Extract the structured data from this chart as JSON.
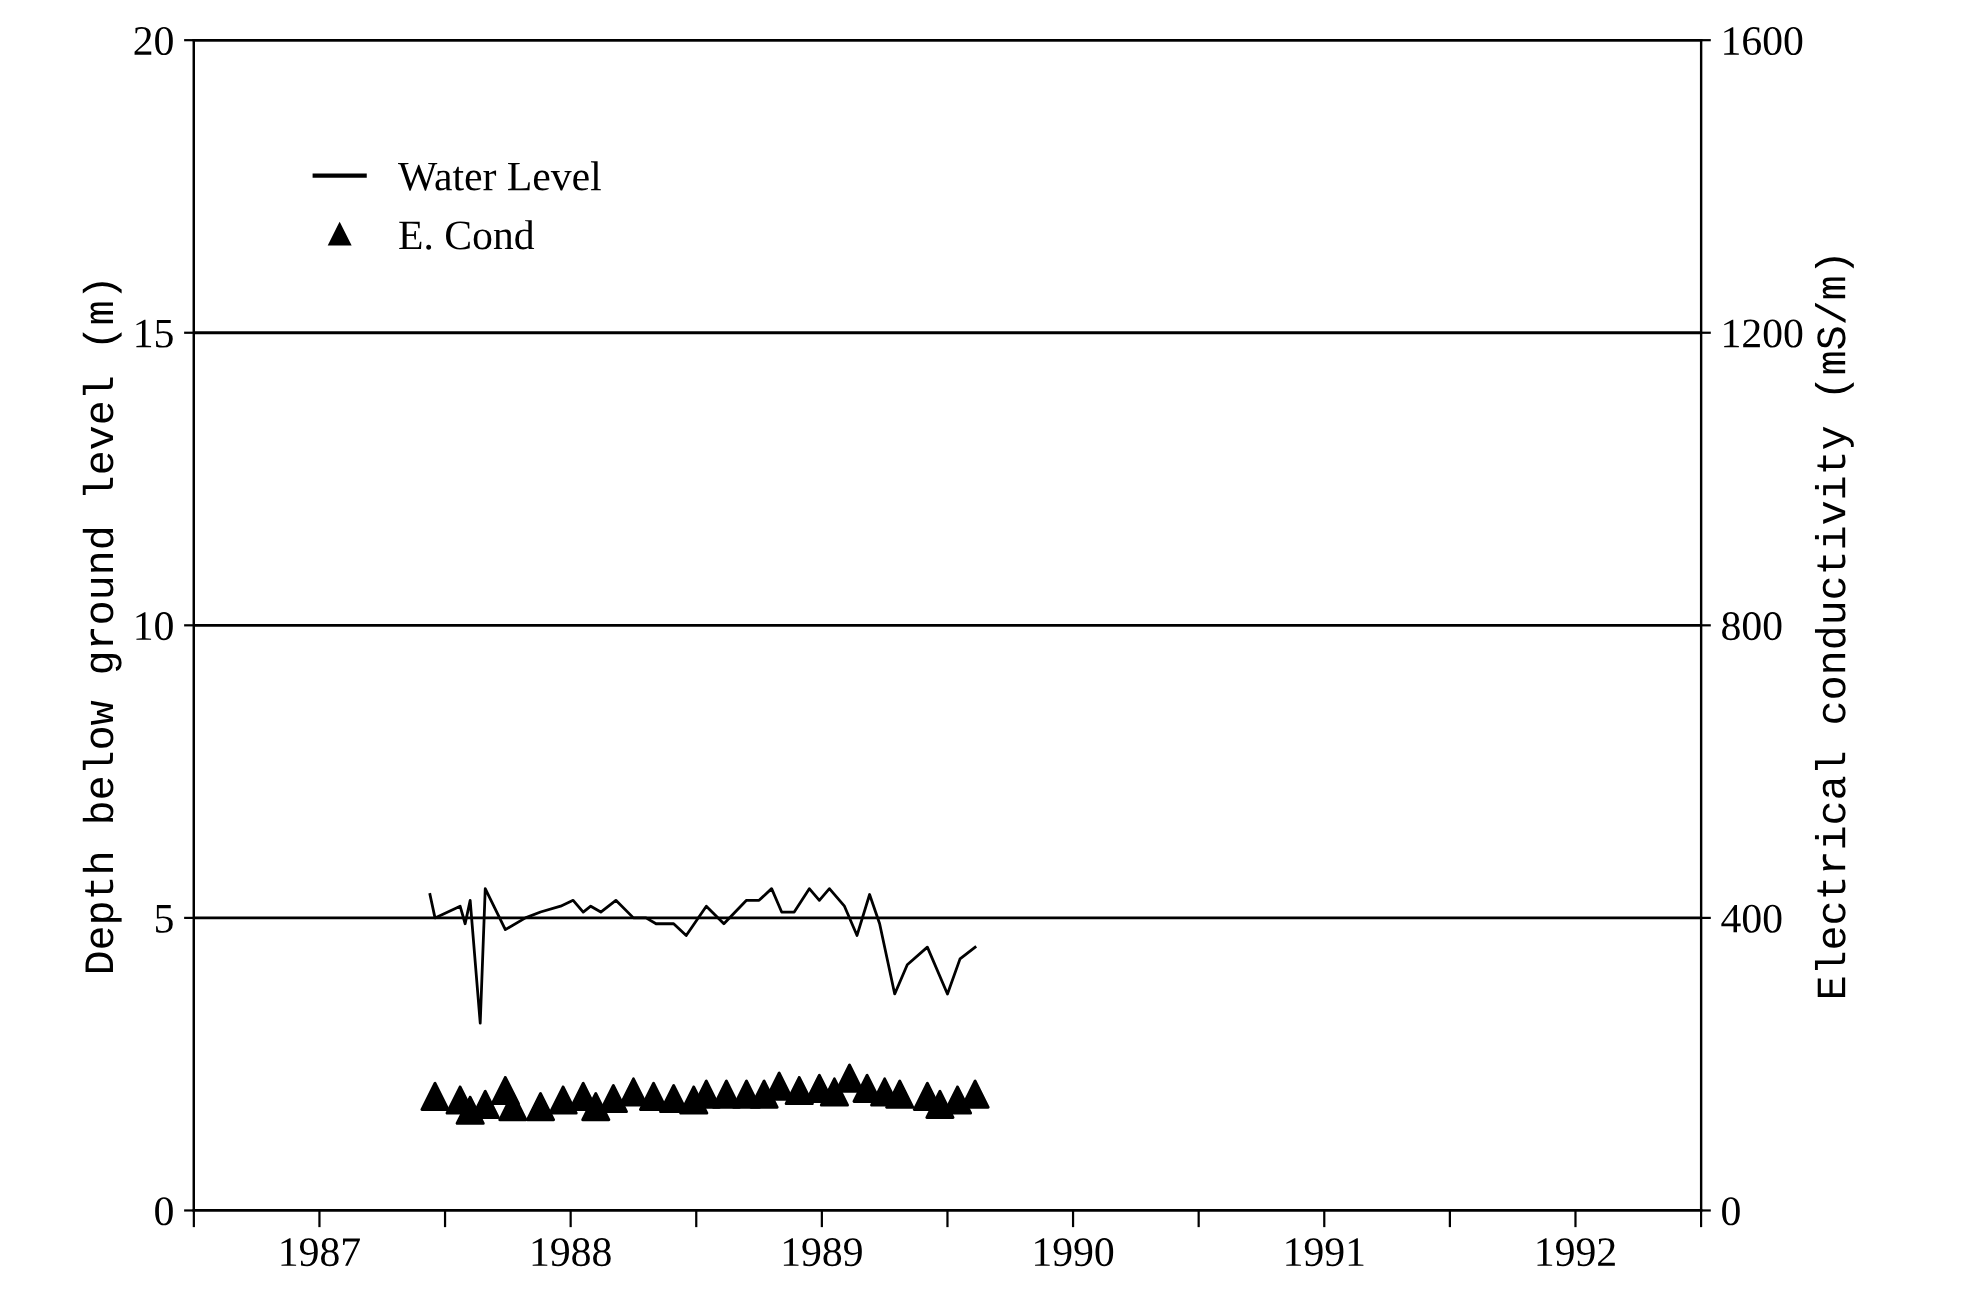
{
  "chart_data": {
    "type": "line",
    "xlabel": null,
    "ylabel": "Depth below ground level (m)",
    "y2label": "Electrical conductivity (mS/m)",
    "xlim": [
      1987,
      1993
    ],
    "xticks": [
      {
        "value": 1987,
        "label": null
      },
      {
        "value": 1988,
        "label": null
      },
      {
        "value": 1989,
        "label": null
      },
      {
        "value": 1990,
        "label": null
      },
      {
        "value": 1991,
        "label": null
      },
      {
        "value": 1992,
        "label": null
      },
      {
        "value": 1993,
        "label": null
      },
      {
        "value": 1987.5,
        "label": "1987"
      },
      {
        "value": 1988.5,
        "label": "1988"
      },
      {
        "value": 1989.5,
        "label": "1989"
      },
      {
        "value": 1990.5,
        "label": "1990"
      },
      {
        "value": 1991.5,
        "label": "1991"
      },
      {
        "value": 1992.5,
        "label": "1992"
      }
    ],
    "ylim": [
      0,
      20
    ],
    "yticks": [
      0,
      5,
      10,
      15,
      20
    ],
    "y2lim": [
      0,
      1600
    ],
    "y2ticks": [
      0,
      400,
      800,
      1200,
      1600
    ],
    "grid": "y",
    "legend": "top left",
    "series": [
      {
        "name": "Water Level",
        "color": "#000000",
        "marker": "none",
        "line_style": "solid",
        "x": [
          1987.94,
          1987.96,
          1988.06,
          1988.08,
          1988.1,
          1988.14,
          1988.16,
          1988.24,
          1988.32,
          1988.38,
          1988.46,
          1988.51,
          1988.55,
          1988.58,
          1988.62,
          1988.68,
          1988.75,
          1988.8,
          1988.84,
          1988.91,
          1988.96,
          1989.04,
          1989.11,
          1989.2,
          1989.25,
          1989.3,
          1989.34,
          1989.39,
          1989.45,
          1989.49,
          1989.53,
          1989.59,
          1989.64,
          1989.69,
          1989.73,
          1989.79,
          1989.84,
          1989.92,
          1990.0,
          1990.05,
          1990.11
        ],
        "values": [
          5.4,
          5.0,
          5.2,
          4.9,
          5.3,
          3.2,
          5.5,
          4.8,
          5.0,
          5.1,
          5.2,
          5.3,
          5.1,
          5.2,
          5.1,
          5.3,
          5.0,
          5.0,
          4.9,
          4.9,
          4.7,
          5.2,
          4.9,
          5.3,
          5.3,
          5.5,
          5.1,
          5.1,
          5.5,
          5.3,
          5.5,
          5.2,
          4.7,
          5.4,
          4.9,
          3.7,
          4.2,
          4.5,
          3.7,
          4.3,
          4.5
        ]
      },
      {
        "name": "E. Cond",
        "color": "#000000",
        "type": "scatter",
        "marker": "triangle",
        "axis": "y2",
        "x": [
          1987.96,
          1988.06,
          1988.1,
          1988.16,
          1988.24,
          1988.27,
          1988.38,
          1988.47,
          1988.55,
          1988.6,
          1988.67,
          1988.75,
          1988.83,
          1988.91,
          1988.99,
          1989.04,
          1989.12,
          1989.2,
          1989.27,
          1989.33,
          1989.41,
          1989.49,
          1989.55,
          1989.61,
          1989.68,
          1989.75,
          1989.81,
          1989.92,
          1989.97,
          1990.04,
          1990.11
        ],
        "values": [
          156,
          151,
          137,
          145,
          164,
          142,
          142,
          151,
          156,
          142,
          153,
          162,
          156,
          153,
          151,
          159,
          159,
          159,
          159,
          170,
          164,
          167,
          162,
          181,
          167,
          162,
          159,
          156,
          145,
          151,
          159
        ]
      }
    ]
  }
}
